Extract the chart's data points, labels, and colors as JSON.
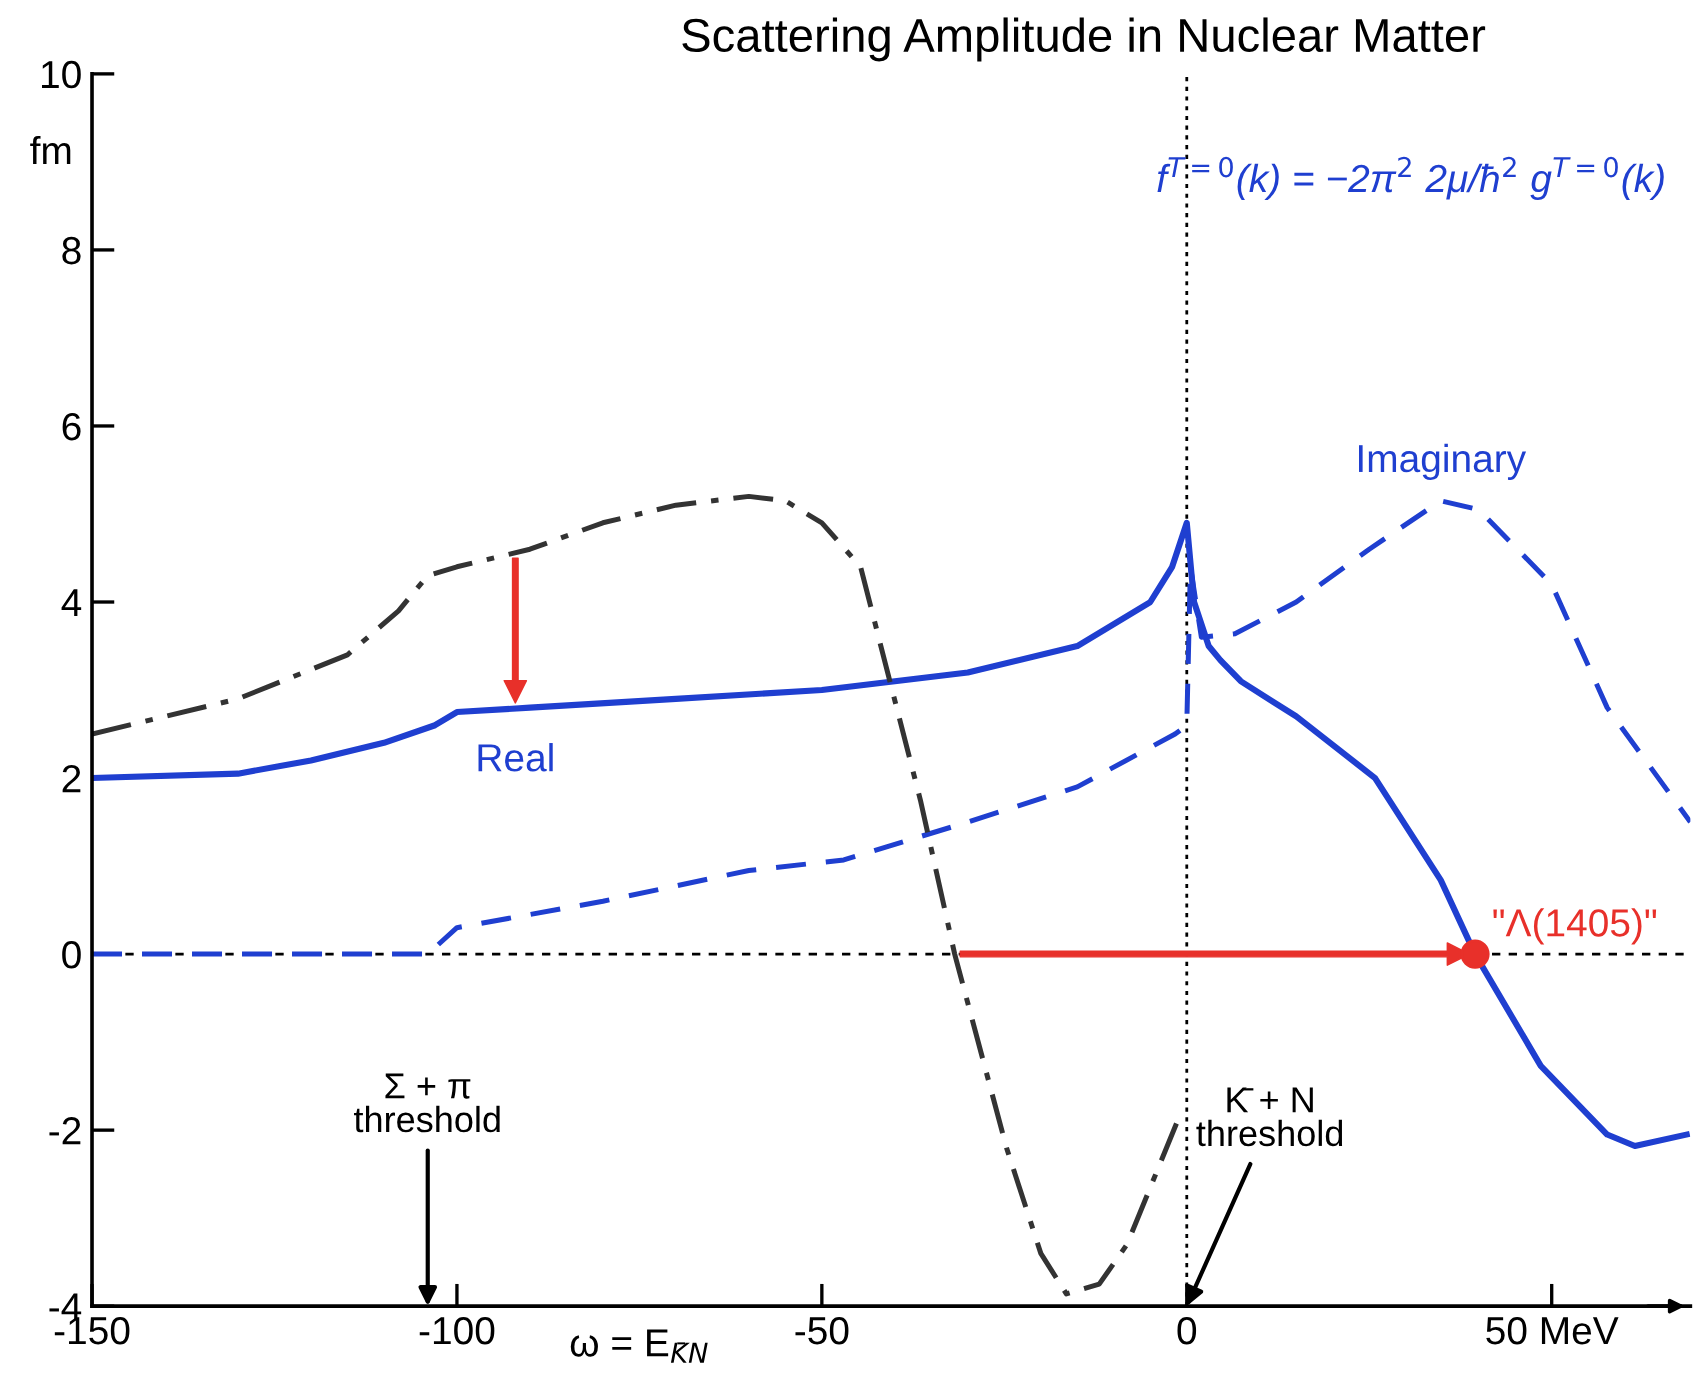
{
  "chart_data": {
    "type": "line",
    "title": "Scattering Amplitude in Nuclear Matter",
    "xlabel": "ω = E$_{K̄N}$",
    "ylabel": "fm",
    "xlim": [
      -150,
      69
    ],
    "ylim": [
      -4,
      10
    ],
    "xticks": [
      -150,
      -100,
      -50,
      0,
      {
        "value": 50,
        "label": "50 MeV"
      }
    ],
    "yticks": [
      -4,
      -2,
      0,
      2,
      4,
      6,
      8,
      10
    ],
    "grid": false,
    "series": [
      {
        "type": "scatter",
        "color": "#e8302a",
        "x": [
          39.5
        ],
        "values": [
          0
        ]
      },
      {
        "color": "#1f3fd0",
        "line_style": "solid",
        "x": [
          -150,
          -130,
          -120,
          -110,
          -103,
          -100,
          -90,
          -70,
          -50,
          -30,
          -15,
          -5,
          -2,
          0,
          1,
          3,
          4.6,
          7.4,
          15,
          25.8,
          34.8,
          39.5,
          48.5,
          57.6,
          61.4,
          68.5
        ],
        "values": [
          2.0,
          2.05,
          2.2,
          2.4,
          2.6,
          2.75,
          2.8,
          2.9,
          3.0,
          3.2,
          3.5,
          4.0,
          4.4,
          4.9,
          4.0,
          3.5,
          3.34,
          3.1,
          2.7,
          2.0,
          0.84,
          0,
          -1.27,
          -2.05,
          -2.18,
          -2.05
        ]
      },
      {
        "color": "#1f3fd0",
        "line_style": "dashed",
        "x": [
          -150,
          -104,
          -100,
          -80,
          -60,
          -47,
          -30,
          -15,
          -1.6,
          0,
          0.5,
          2,
          6.6,
          15,
          25,
          34.8,
          40,
          50,
          57.6,
          69
        ],
        "values": [
          0,
          0,
          0.3,
          0.6,
          0.95,
          1.07,
          1.5,
          1.9,
          2.5,
          2.6,
          4.4,
          3.6,
          3.64,
          4.0,
          4.6,
          5.15,
          5.05,
          4.2,
          2.8,
          1.5
        ]
      },
      {
        "color": "#333333",
        "line_style": "dashdot",
        "x": [
          -150,
          -130,
          -115,
          -108,
          -104,
          -100,
          -90,
          -80,
          -70,
          -60,
          -55,
          -50,
          -44.7,
          -36.5,
          -31.8,
          -24.7,
          -20,
          -16.5,
          -12,
          -8.2,
          -0.8
        ],
        "values": [
          2.5,
          2.9,
          3.4,
          3.9,
          4.3,
          4.4,
          4.6,
          4.9,
          5.1,
          5.2,
          5.15,
          4.9,
          4.4,
          1.75,
          0,
          -2.2,
          -3.4,
          -3.86,
          -3.75,
          -3.3,
          -1.8
        ]
      }
    ],
    "ref_lines": [
      {
        "axis": "x",
        "value": 0,
        "line_style": "dotted",
        "color": "#000000"
      },
      {
        "axis": "y",
        "value": 0,
        "line_style": "dashed",
        "color": "#000000"
      }
    ],
    "annotations": [
      "f$^{T=0}$(k) = −2π$^{2}$ 2μ/ħ$^{2}$ g$^{T=0}$(k)",
      {
        "text": "Real",
        "x": -92,
        "y": 2.76
      },
      {
        "text": "Imaginary",
        "x": 34.8,
        "y": 5.15
      },
      {
        "text": "\"Λ(1405)\"",
        "x": 39.5,
        "y": 0
      },
      "Σ + π\nthreshold",
      {
        "text": "K̄ + N\nthreshold",
        "x": 0,
        "y": -4
      }
    ]
  }
}
